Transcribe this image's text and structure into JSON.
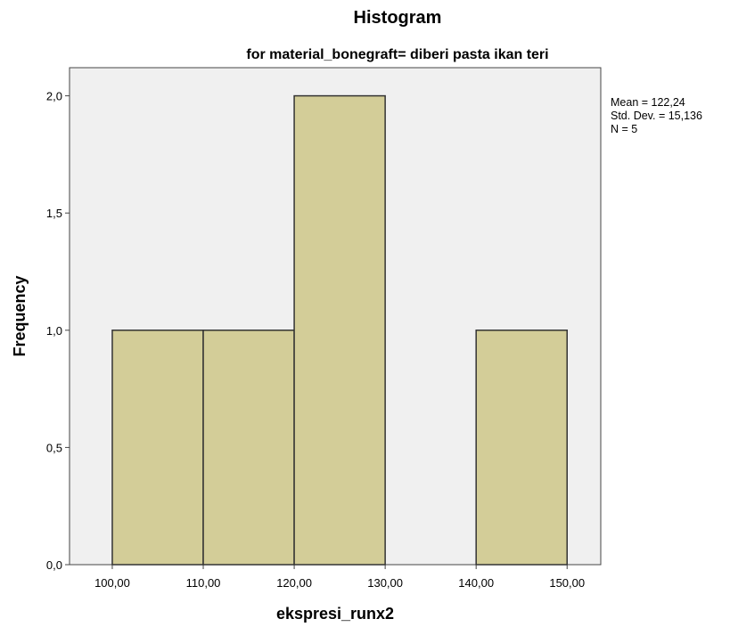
{
  "chart_data": {
    "type": "bar",
    "title": "Histogram",
    "subtitle": "for material_bonegraft= diberi pasta ikan teri",
    "xlabel": "ekspresi_runx2",
    "ylabel": "Frequency",
    "bins": [
      {
        "from": 100,
        "to": 110,
        "count": 1
      },
      {
        "from": 110,
        "to": 120,
        "count": 1
      },
      {
        "from": 120,
        "to": 130,
        "count": 2
      },
      {
        "from": 130,
        "to": 140,
        "count": 0
      },
      {
        "from": 140,
        "to": 150,
        "count": 1
      }
    ],
    "xlim": [
      95.3,
      153.7
    ],
    "ylim": [
      0,
      2.12
    ],
    "x_ticks": [
      {
        "value": 100,
        "label": "100,00"
      },
      {
        "value": 110,
        "label": "110,00"
      },
      {
        "value": 120,
        "label": "120,00"
      },
      {
        "value": 130,
        "label": "130,00"
      },
      {
        "value": 140,
        "label": "140,00"
      },
      {
        "value": 150,
        "label": "150,00"
      }
    ],
    "y_ticks": [
      {
        "value": 0,
        "label": "0,0"
      },
      {
        "value": 0.5,
        "label": "0,5"
      },
      {
        "value": 1,
        "label": "1,0"
      },
      {
        "value": 1.5,
        "label": "1,5"
      },
      {
        "value": 2,
        "label": "2,0"
      }
    ],
    "stats": {
      "mean": "Mean = 122,24",
      "std_dev": "Std. Dev. = 15,136",
      "n": "N = 5"
    },
    "grid": false,
    "colors": {
      "bar_fill": "#d3cd98",
      "bar_stroke": "#333333",
      "plot_background": "#f0f0f0"
    }
  }
}
